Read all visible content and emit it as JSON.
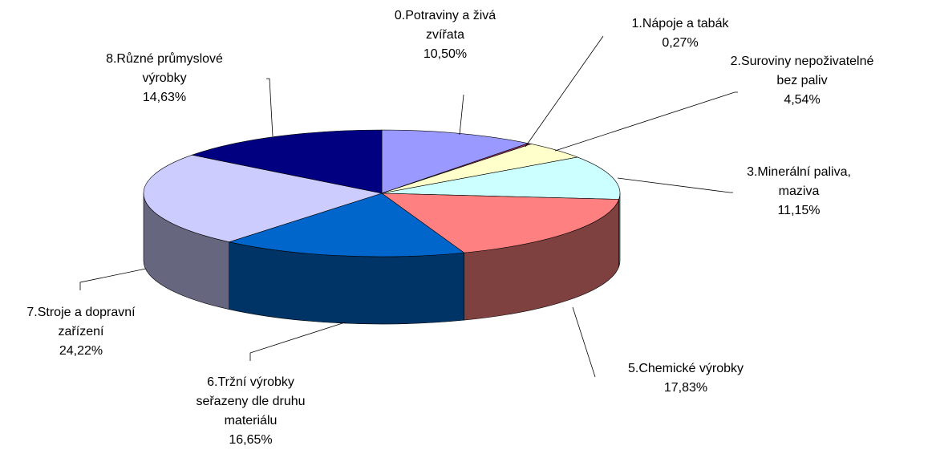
{
  "chart_data": {
    "type": "pie3d",
    "categories": [
      "0.Potraviny a živá zvířata",
      "1.Nápoje a tabák",
      "2.Suroviny nepoživatelné bez paliv",
      "3.Minerální paliva, maziva",
      "5.Chemické výrobky",
      "6.Tržní výrobky seřazeny dle druhu materiálu",
      "7.Stroje a dopravní zařízení",
      "8.Různé průmyslové výrobky"
    ],
    "values": [
      10.5,
      0.27,
      4.54,
      11.15,
      17.83,
      16.65,
      24.22,
      14.63
    ],
    "value_labels": [
      "10,50%",
      "0,27%",
      "4,54%",
      "11,15%",
      "17,83%",
      "16,65%",
      "24,22%",
      "14,63%"
    ],
    "colors": [
      "#9999ff",
      "#993366",
      "#ffffcc",
      "#ccffff",
      "#ff8080",
      "#0066cc",
      "#ccccff",
      "#000080"
    ]
  }
}
